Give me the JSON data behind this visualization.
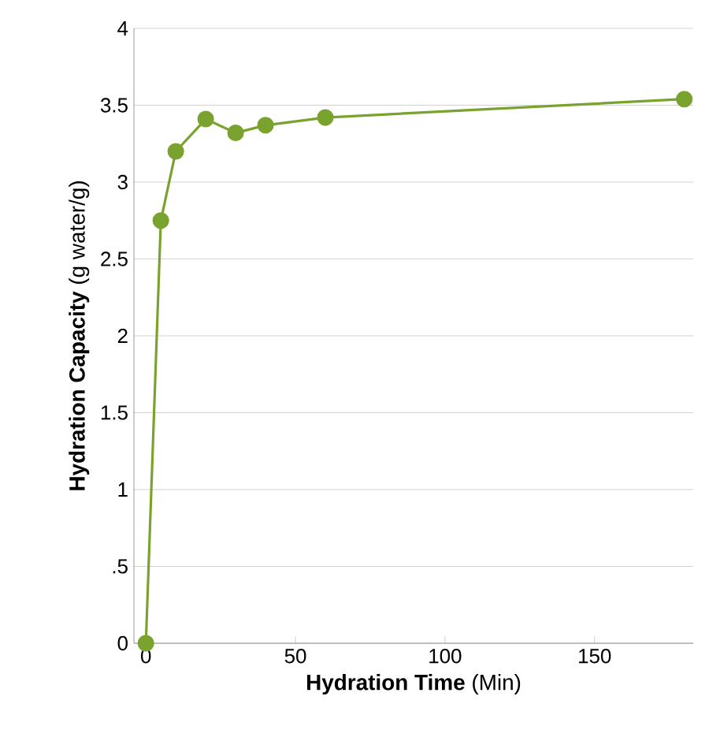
{
  "chart_data": {
    "type": "line",
    "xlabel": "**Hydration Time** (Min)",
    "ylabel": "**Hydration Capacity** (g water/g)",
    "x": [
      0,
      5,
      10,
      20,
      30,
      40,
      60,
      180
    ],
    "series": [
      {
        "color": "#7aa22e",
        "values": [
          0,
          2.75,
          3.2,
          3.41,
          3.32,
          3.37,
          3.42,
          3.54
        ]
      }
    ],
    "xlim": [
      -4,
      183
    ],
    "ylim": [
      0,
      4
    ],
    "xticks": [
      0,
      50,
      100,
      150
    ],
    "yticks": [
      0,
      {
        "value": 0.5,
        "label": ".5"
      },
      1,
      1.5,
      2,
      2.5,
      3,
      3.5,
      4
    ],
    "grid": "y",
    "marker": "circle",
    "line_style": "solid"
  }
}
